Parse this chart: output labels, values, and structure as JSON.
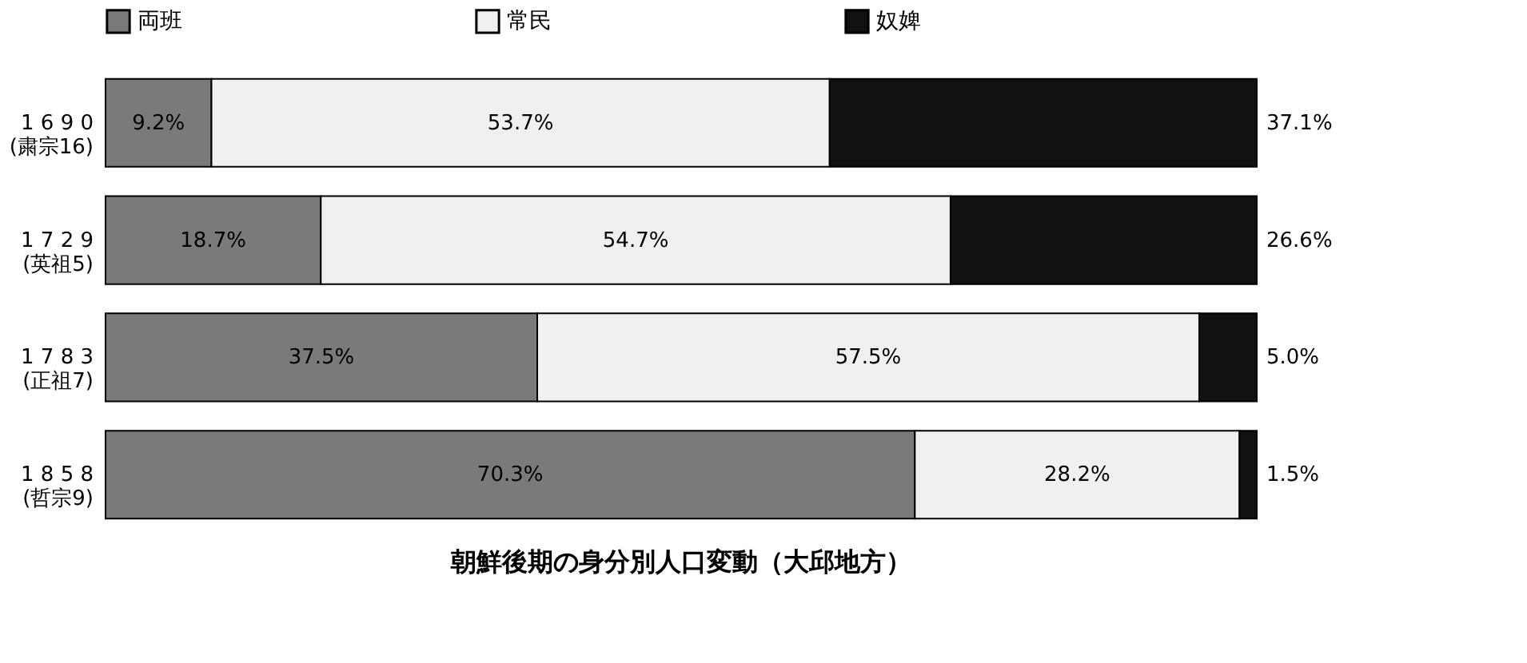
{
  "chart_data": {
    "type": "bar",
    "orientation": "horizontal",
    "stacked": true,
    "title": "朝鮮後期の身分別人口変動（大邱地方）",
    "categories": [
      "1 6 9 0\n(粛宗16)",
      "1 7 2 9\n(英祖5)",
      "1 7 8 3\n(正祖7)",
      "1 8 5 8\n(哲宗9)"
    ],
    "series": [
      {
        "name": "両班",
        "color": "#7a7a7a",
        "values": [
          9.2,
          18.7,
          37.5,
          70.3
        ],
        "value_labels": [
          "9.2%",
          "18.7%",
          "37.5%",
          "70.3%"
        ]
      },
      {
        "name": "常民",
        "color": "#f0f0f0",
        "values": [
          53.7,
          54.7,
          57.5,
          28.2
        ],
        "value_labels": [
          "53.7%",
          "54.7%",
          "57.5%",
          "28.2%"
        ]
      },
      {
        "name": "奴婢",
        "color": "#111111",
        "values": [
          37.1,
          26.6,
          5.0,
          1.5
        ],
        "value_labels": [
          "37.1%",
          "26.6%",
          "5.0%",
          "1.5%"
        ]
      }
    ],
    "legend": "top"
  }
}
